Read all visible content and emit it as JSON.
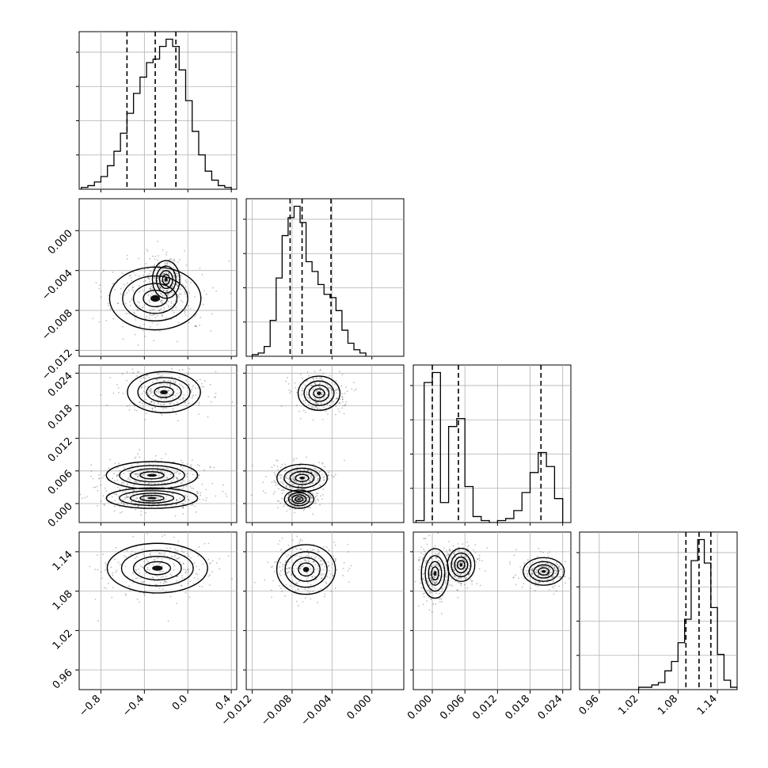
{
  "chart_data": {
    "type": "corner",
    "title": "",
    "parameters": [
      {
        "label": "",
        "range": [
          -1.0,
          0.45
        ],
        "ticks": [
          -0.8,
          -0.4,
          0.0,
          0.4
        ],
        "tick_labels": [
          "−0.8",
          "−0.4",
          "0.0",
          "0.4"
        ],
        "quantiles": [
          -0.56,
          -0.3,
          -0.11
        ]
      },
      {
        "label": "",
        "range": [
          -0.0126,
          0.0032
        ],
        "ticks": [
          -0.012,
          -0.008,
          -0.004,
          0.0
        ],
        "tick_labels": [
          "−0.012",
          "−0.008",
          "−0.004",
          "0.000"
        ],
        "quantiles": [
          -0.0082,
          -0.007,
          -0.0041
        ]
      },
      {
        "label": "",
        "range": [
          -0.0035,
          0.0255
        ],
        "ticks": [
          0.0,
          0.006,
          0.012,
          0.018,
          0.024
        ],
        "tick_labels": [
          "0.000",
          "0.006",
          "0.012",
          "0.018",
          "0.024"
        ],
        "quantiles": [
          0.0,
          0.0048,
          0.02
        ]
      },
      {
        "label": "",
        "range": [
          0.93,
          1.17
        ],
        "ticks": [
          0.96,
          1.02,
          1.08,
          1.14
        ],
        "tick_labels": [
          "0.96",
          "1.02",
          "1.08",
          "1.14"
        ],
        "quantiles": [
          1.092,
          1.112,
          1.13
        ]
      }
    ],
    "histograms": [
      {
        "param": 0,
        "bin_edges": [
          -0.98,
          -0.92,
          -0.86,
          -0.8,
          -0.74,
          -0.68,
          -0.62,
          -0.56,
          -0.5,
          -0.44,
          -0.38,
          -0.32,
          -0.26,
          -0.2,
          -0.14,
          -0.08,
          -0.02,
          0.04,
          0.1,
          0.16,
          0.22,
          0.28,
          0.34,
          0.4
        ],
        "counts": [
          1,
          2,
          4,
          7,
          13,
          21,
          31,
          42,
          53,
          62,
          70,
          72,
          79,
          83,
          79,
          66,
          49,
          32,
          19,
          10,
          5,
          2,
          1
        ]
      },
      {
        "param": 1,
        "bin_edges": [
          -0.012,
          -0.0114,
          -0.0108,
          -0.0102,
          -0.0096,
          -0.009,
          -0.0084,
          -0.0078,
          -0.0072,
          -0.0066,
          -0.006,
          -0.0054,
          -0.0048,
          -0.0042,
          -0.0036,
          -0.003,
          -0.0024,
          -0.0018,
          -0.0012,
          -0.0006
        ],
        "counts": [
          1,
          2,
          6,
          22,
          48,
          74,
          85,
          92,
          82,
          58,
          52,
          44,
          38,
          36,
          28,
          16,
          8,
          4,
          2
        ]
      },
      {
        "param": 2,
        "bin_edges": [
          -0.003,
          -0.0015,
          0.0,
          0.0015,
          0.003,
          0.0045,
          0.006,
          0.0075,
          0.009,
          0.0105,
          0.012,
          0.0135,
          0.015,
          0.0165,
          0.018,
          0.0195,
          0.021,
          0.0225,
          0.024
        ],
        "counts": [
          1,
          70,
          75,
          10,
          48,
          52,
          18,
          3,
          1,
          0,
          1,
          2,
          6,
          15,
          25,
          35,
          28,
          12
        ]
      },
      {
        "param": 3,
        "bin_edges": [
          1.02,
          1.03,
          1.04,
          1.05,
          1.06,
          1.07,
          1.08,
          1.09,
          1.1,
          1.11,
          1.12,
          1.13,
          1.14,
          1.15,
          1.16,
          1.17
        ],
        "counts": [
          1,
          1,
          2,
          3,
          8,
          12,
          20,
          30,
          55,
          64,
          54,
          35,
          15,
          4,
          1
        ]
      }
    ],
    "joint_modes": [
      {
        "x_param": 0,
        "y_param": 1,
        "modes": [
          {
            "x": -0.3,
            "y": -0.0068,
            "sx": 0.2,
            "sy": 0.0015
          },
          {
            "x": -0.2,
            "y": -0.0049,
            "sx": 0.06,
            "sy": 0.0009
          }
        ]
      },
      {
        "x_param": 0,
        "y_param": 2,
        "modes": [
          {
            "x": -0.22,
            "y": 0.0205,
            "sx": 0.16,
            "sy": 0.0018
          },
          {
            "x": -0.33,
            "y": 0.0052,
            "sx": 0.2,
            "sy": 0.0012
          },
          {
            "x": -0.33,
            "y": 0.001,
            "sx": 0.2,
            "sy": 0.0009
          }
        ]
      },
      {
        "x_param": 1,
        "y_param": 2,
        "modes": [
          {
            "x": -0.0053,
            "y": 0.0203,
            "sx": 0.001,
            "sy": 0.0015
          },
          {
            "x": -0.007,
            "y": 0.0047,
            "sx": 0.0012,
            "sy": 0.0012
          },
          {
            "x": -0.0073,
            "y": 0.0008,
            "sx": 0.0007,
            "sy": 0.0008
          }
        ]
      },
      {
        "x_param": 0,
        "y_param": 3,
        "modes": [
          {
            "x": -0.28,
            "y": 1.115,
            "sx": 0.22,
            "sy": 0.018
          }
        ]
      },
      {
        "x_param": 1,
        "y_param": 3,
        "modes": [
          {
            "x": -0.0066,
            "y": 1.113,
            "sx": 0.0014,
            "sy": 0.018
          }
        ]
      },
      {
        "x_param": 2,
        "y_param": 3,
        "modes": [
          {
            "x": 0.0005,
            "y": 1.107,
            "sx": 0.0012,
            "sy": 0.018
          },
          {
            "x": 0.0053,
            "y": 1.12,
            "sx": 0.0012,
            "sy": 0.012
          },
          {
            "x": 0.0205,
            "y": 1.11,
            "sx": 0.0018,
            "sy": 0.01
          }
        ]
      }
    ],
    "grid": true,
    "legend": "none"
  }
}
